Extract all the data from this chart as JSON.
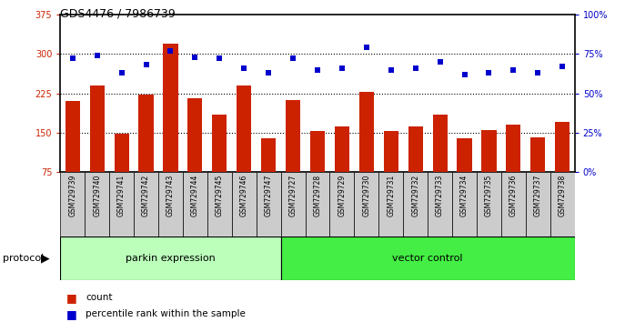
{
  "title": "GDS4476 / 7986739",
  "samples": [
    "GSM729739",
    "GSM729740",
    "GSM729741",
    "GSM729742",
    "GSM729743",
    "GSM729744",
    "GSM729745",
    "GSM729746",
    "GSM729747",
    "GSM729727",
    "GSM729728",
    "GSM729729",
    "GSM729730",
    "GSM729731",
    "GSM729732",
    "GSM729733",
    "GSM729734",
    "GSM729735",
    "GSM729736",
    "GSM729737",
    "GSM729738"
  ],
  "counts": [
    210,
    240,
    148,
    222,
    320,
    215,
    185,
    240,
    140,
    213,
    153,
    162,
    228,
    153,
    162,
    185,
    140,
    155,
    165,
    142,
    170
  ],
  "percentiles": [
    72,
    74,
    63,
    68,
    77,
    73,
    72,
    66,
    63,
    72,
    65,
    66,
    79,
    65,
    66,
    70,
    62,
    63,
    65,
    63,
    67
  ],
  "parkin_count": 9,
  "ylim_left": [
    75,
    375
  ],
  "ylim_right": [
    0,
    100
  ],
  "yticks_left": [
    75,
    150,
    225,
    300,
    375
  ],
  "yticks_right": [
    0,
    25,
    50,
    75,
    100
  ],
  "bar_color": "#cc2200",
  "dot_color": "#0000cc",
  "parkin_bg": "#bbffbb",
  "vector_bg": "#44ee44",
  "xlabel_bg": "#cccccc",
  "protocol_label": "protocol",
  "parkin_label": "parkin expression",
  "vector_label": "vector control",
  "legend_count_label": "count",
  "legend_pct_label": "percentile rank within the sample"
}
